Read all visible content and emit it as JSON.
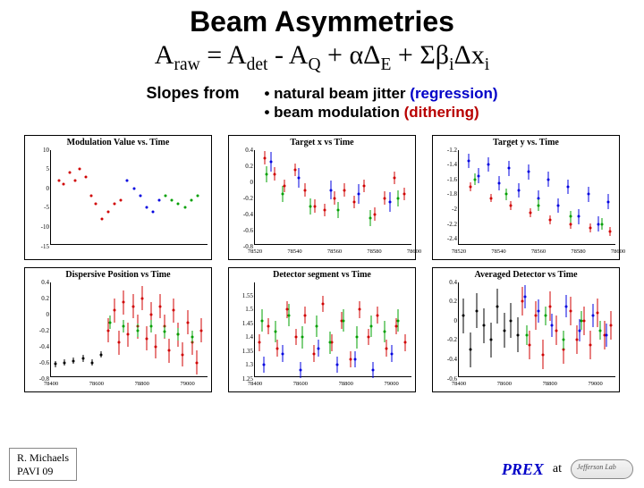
{
  "title": "Beam Asymmetries",
  "equation_html": "A<sub>raw</sub> = A<sub>det</sub> - A<sub>Q</sub> + αΔ<sub>E</sub> + Σβ<sub>i</sub>Δx<sub>i</sub>",
  "slopes_from": "Slopes  from",
  "bullet1_prefix": "• natural beam jitter ",
  "bullet1_highlight": "(regression)",
  "bullet2_prefix": "• beam modulation ",
  "bullet2_highlight": "(dithering)",
  "colors": {
    "regression": "#0000c8",
    "dithering": "#b80000",
    "red": "#d00000",
    "blue": "#0000e0",
    "green": "#00a000",
    "black": "#000000"
  },
  "charts": [
    {
      "title": "Modulation Value vs. Time",
      "ylim": [
        -15,
        10
      ],
      "yticks": [
        -15,
        -10,
        -5,
        0,
        5,
        10
      ],
      "xlim": [
        0,
        1
      ],
      "xticks": [],
      "series": [
        {
          "color": "#d00000",
          "points": [
            [
              0.05,
              2
            ],
            [
              0.08,
              1
            ],
            [
              0.12,
              4
            ],
            [
              0.15,
              2
            ],
            [
              0.18,
              5
            ],
            [
              0.22,
              3
            ],
            [
              0.25,
              -2
            ],
            [
              0.28,
              -4
            ],
            [
              0.32,
              -8
            ],
            [
              0.36,
              -6
            ],
            [
              0.4,
              -4
            ],
            [
              0.44,
              -3
            ]
          ],
          "err": 0
        },
        {
          "color": "#0000e0",
          "points": [
            [
              0.48,
              2
            ],
            [
              0.52,
              0
            ],
            [
              0.56,
              -2
            ],
            [
              0.6,
              -5
            ],
            [
              0.64,
              -6
            ],
            [
              0.68,
              -3
            ]
          ],
          "err": 0
        },
        {
          "color": "#00a000",
          "points": [
            [
              0.72,
              -2
            ],
            [
              0.76,
              -3
            ],
            [
              0.8,
              -4
            ],
            [
              0.84,
              -5
            ],
            [
              0.88,
              -3
            ],
            [
              0.92,
              -2
            ]
          ],
          "err": 0
        }
      ]
    },
    {
      "title": "Target x vs Time",
      "ylim": [
        -0.8,
        0.4
      ],
      "yticks": [
        -0.8,
        -0.6,
        -0.4,
        -0.2,
        0,
        0.2,
        0.4
      ],
      "xlim": [
        78520,
        78600
      ],
      "xticks": [
        78520,
        78540,
        78560,
        78580,
        78600
      ],
      "series": [
        {
          "color": "#d00000",
          "points": [
            [
              78525,
              0.3
            ],
            [
              78530,
              0.1
            ],
            [
              78535,
              -0.05
            ],
            [
              78540,
              0.15
            ],
            [
              78545,
              -0.1
            ],
            [
              78550,
              -0.3
            ],
            [
              78555,
              -0.35
            ],
            [
              78560,
              -0.2
            ],
            [
              78565,
              -0.1
            ],
            [
              78570,
              -0.25
            ],
            [
              78575,
              -0.05
            ],
            [
              78580,
              -0.4
            ],
            [
              78585,
              -0.2
            ],
            [
              78590,
              0.05
            ],
            [
              78595,
              -0.15
            ]
          ],
          "err": 0.08
        },
        {
          "color": "#00a000",
          "points": [
            [
              78526,
              0.1
            ],
            [
              78534,
              -0.15
            ],
            [
              78548,
              -0.3
            ],
            [
              78562,
              -0.35
            ],
            [
              78578,
              -0.45
            ],
            [
              78592,
              -0.2
            ]
          ],
          "err": 0.1
        },
        {
          "color": "#0000e0",
          "points": [
            [
              78528,
              0.25
            ],
            [
              78542,
              0.05
            ],
            [
              78558,
              -0.1
            ],
            [
              78572,
              -0.15
            ],
            [
              78588,
              -0.25
            ]
          ],
          "err": 0.12
        }
      ]
    },
    {
      "title": "Target y vs. Time",
      "ylim": [
        -2.5,
        -1.2
      ],
      "yticks": [
        -2.4,
        -2.2,
        -2.0,
        -1.8,
        -1.6,
        -1.4,
        -1.2
      ],
      "xlim": [
        78520,
        78600
      ],
      "xticks": [
        78520,
        78540,
        78560,
        78580,
        78600
      ],
      "series": [
        {
          "color": "#0000e0",
          "points": [
            [
              78525,
              -1.35
            ],
            [
              78530,
              -1.55
            ],
            [
              78535,
              -1.4
            ],
            [
              78540,
              -1.65
            ],
            [
              78545,
              -1.45
            ],
            [
              78550,
              -1.75
            ],
            [
              78555,
              -1.5
            ],
            [
              78560,
              -1.85
            ],
            [
              78565,
              -1.6
            ],
            [
              78570,
              -1.95
            ],
            [
              78575,
              -1.7
            ],
            [
              78580,
              -2.1
            ],
            [
              78585,
              -1.8
            ],
            [
              78590,
              -2.2
            ],
            [
              78595,
              -1.9
            ]
          ],
          "err": 0.1
        },
        {
          "color": "#d00000",
          "points": [
            [
              78526,
              -1.7
            ],
            [
              78536,
              -1.85
            ],
            [
              78546,
              -1.95
            ],
            [
              78556,
              -2.05
            ],
            [
              78566,
              -2.15
            ],
            [
              78576,
              -2.2
            ],
            [
              78586,
              -2.25
            ],
            [
              78596,
              -2.3
            ]
          ],
          "err": 0.06
        },
        {
          "color": "#00a000",
          "points": [
            [
              78528,
              -1.6
            ],
            [
              78544,
              -1.8
            ],
            [
              78560,
              -1.95
            ],
            [
              78576,
              -2.1
            ],
            [
              78592,
              -2.2
            ]
          ],
          "err": 0.08
        }
      ]
    },
    {
      "title": "Dispersive Position vs Time",
      "ylim": [
        -0.8,
        0.4
      ],
      "yticks": [
        -0.8,
        -0.6,
        -0.4,
        -0.2,
        0,
        0.2,
        0.4
      ],
      "xlim": [
        78400,
        79100
      ],
      "xticks": [
        78400,
        78600,
        78800,
        79000
      ],
      "series": [
        {
          "color": "#000000",
          "points": [
            [
              78420,
              -0.62
            ],
            [
              78460,
              -0.6
            ],
            [
              78500,
              -0.58
            ],
            [
              78540,
              -0.55
            ],
            [
              78580,
              -0.6
            ],
            [
              78620,
              -0.5
            ]
          ],
          "err": 0.04
        },
        {
          "color": "#d00000",
          "points": [
            [
              78650,
              -0.2
            ],
            [
              78680,
              0.05
            ],
            [
              78700,
              -0.35
            ],
            [
              78720,
              0.15
            ],
            [
              78740,
              -0.25
            ],
            [
              78760,
              0.1
            ],
            [
              78780,
              -0.15
            ],
            [
              78800,
              0.2
            ],
            [
              78820,
              -0.3
            ],
            [
              78840,
              0.0
            ],
            [
              78860,
              -0.4
            ],
            [
              78880,
              0.1
            ],
            [
              78900,
              -0.15
            ],
            [
              78920,
              -0.45
            ],
            [
              78940,
              0.05
            ],
            [
              78960,
              -0.25
            ],
            [
              78980,
              -0.5
            ],
            [
              79000,
              -0.1
            ],
            [
              79020,
              -0.35
            ],
            [
              79040,
              -0.6
            ],
            [
              79060,
              -0.2
            ]
          ],
          "err": 0.15
        },
        {
          "color": "#00a000",
          "points": [
            [
              78660,
              -0.1
            ],
            [
              78720,
              -0.15
            ],
            [
              78780,
              -0.2
            ],
            [
              78840,
              -0.15
            ],
            [
              78900,
              -0.22
            ],
            [
              78960,
              -0.25
            ],
            [
              79020,
              -0.28
            ]
          ],
          "err": 0.08
        }
      ]
    },
    {
      "title": "Detector segment vs Time",
      "ylim": [
        1.25,
        1.6
      ],
      "yticks": [
        1.25,
        1.3,
        1.35,
        1.4,
        1.45,
        1.5,
        1.55
      ],
      "xlim": [
        78400,
        79100
      ],
      "xticks": [
        78400,
        78600,
        78800,
        79000
      ],
      "series": [
        {
          "color": "#d00000",
          "points": [
            [
              78420,
              1.38
            ],
            [
              78460,
              1.44
            ],
            [
              78500,
              1.36
            ],
            [
              78540,
              1.5
            ],
            [
              78580,
              1.4
            ],
            [
              78620,
              1.48
            ],
            [
              78660,
              1.34
            ],
            [
              78700,
              1.52
            ],
            [
              78740,
              1.38
            ],
            [
              78780,
              1.46
            ],
            [
              78820,
              1.32
            ],
            [
              78860,
              1.5
            ],
            [
              78900,
              1.4
            ],
            [
              78940,
              1.48
            ],
            [
              78980,
              1.36
            ],
            [
              79020,
              1.44
            ],
            [
              79060,
              1.38
            ]
          ],
          "err": 0.03
        },
        {
          "color": "#00a000",
          "points": [
            [
              78430,
              1.46
            ],
            [
              78490,
              1.42
            ],
            [
              78550,
              1.48
            ],
            [
              78610,
              1.4
            ],
            [
              78670,
              1.44
            ],
            [
              78730,
              1.38
            ],
            [
              78790,
              1.46
            ],
            [
              78850,
              1.4
            ],
            [
              78910,
              1.44
            ],
            [
              78970,
              1.42
            ],
            [
              79030,
              1.46
            ]
          ],
          "err": 0.04
        },
        {
          "color": "#0000e0",
          "points": [
            [
              78440,
              1.3
            ],
            [
              78520,
              1.34
            ],
            [
              78600,
              1.28
            ],
            [
              78680,
              1.36
            ],
            [
              78760,
              1.3
            ],
            [
              78840,
              1.32
            ],
            [
              78920,
              1.28
            ],
            [
              79000,
              1.34
            ]
          ],
          "err": 0.03
        }
      ]
    },
    {
      "title": "Averaged Detector vs Time",
      "ylim": [
        -0.6,
        0.4
      ],
      "yticks": [
        -0.6,
        -0.4,
        -0.2,
        0,
        0.2,
        0.4
      ],
      "xlim": [
        78400,
        79100
      ],
      "xticks": [
        78400,
        78600,
        78800,
        79000
      ],
      "series": [
        {
          "color": "#000000",
          "points": [
            [
              78420,
              0.05
            ],
            [
              78450,
              -0.3
            ],
            [
              78480,
              0.1
            ],
            [
              78510,
              -0.05
            ],
            [
              78540,
              -0.2
            ],
            [
              78570,
              0.15
            ],
            [
              78600,
              -0.1
            ],
            [
              78630,
              0.0
            ],
            [
              78660,
              -0.15
            ]
          ],
          "err": 0.18
        },
        {
          "color": "#d00000",
          "points": [
            [
              78680,
              0.2
            ],
            [
              78710,
              -0.25
            ],
            [
              78740,
              0.05
            ],
            [
              78770,
              -0.35
            ],
            [
              78800,
              0.15
            ],
            [
              78830,
              -0.1
            ],
            [
              78860,
              -0.3
            ],
            [
              78890,
              0.1
            ],
            [
              78920,
              -0.2
            ],
            [
              78950,
              0.0
            ],
            [
              78980,
              -0.25
            ],
            [
              79010,
              0.08
            ],
            [
              79040,
              -0.15
            ],
            [
              79070,
              -0.05
            ]
          ],
          "err": 0.15
        },
        {
          "color": "#0000e0",
          "points": [
            [
              78690,
              0.25
            ],
            [
              78750,
              0.1
            ],
            [
              78810,
              -0.05
            ],
            [
              78870,
              0.15
            ],
            [
              78930,
              -0.1
            ],
            [
              78990,
              0.05
            ],
            [
              79050,
              -0.15
            ]
          ],
          "err": 0.12
        },
        {
          "color": "#00a000",
          "points": [
            [
              78700,
              -0.15
            ],
            [
              78780,
              0.05
            ],
            [
              78860,
              -0.2
            ],
            [
              78940,
              0.0
            ],
            [
              79020,
              -0.1
            ]
          ],
          "err": 0.1
        }
      ]
    }
  ],
  "footer": {
    "author": "R. Michaels",
    "conf": "PAVI  09",
    "prex": "PREX",
    "at": "at",
    "logo": "Jefferson Lab"
  }
}
